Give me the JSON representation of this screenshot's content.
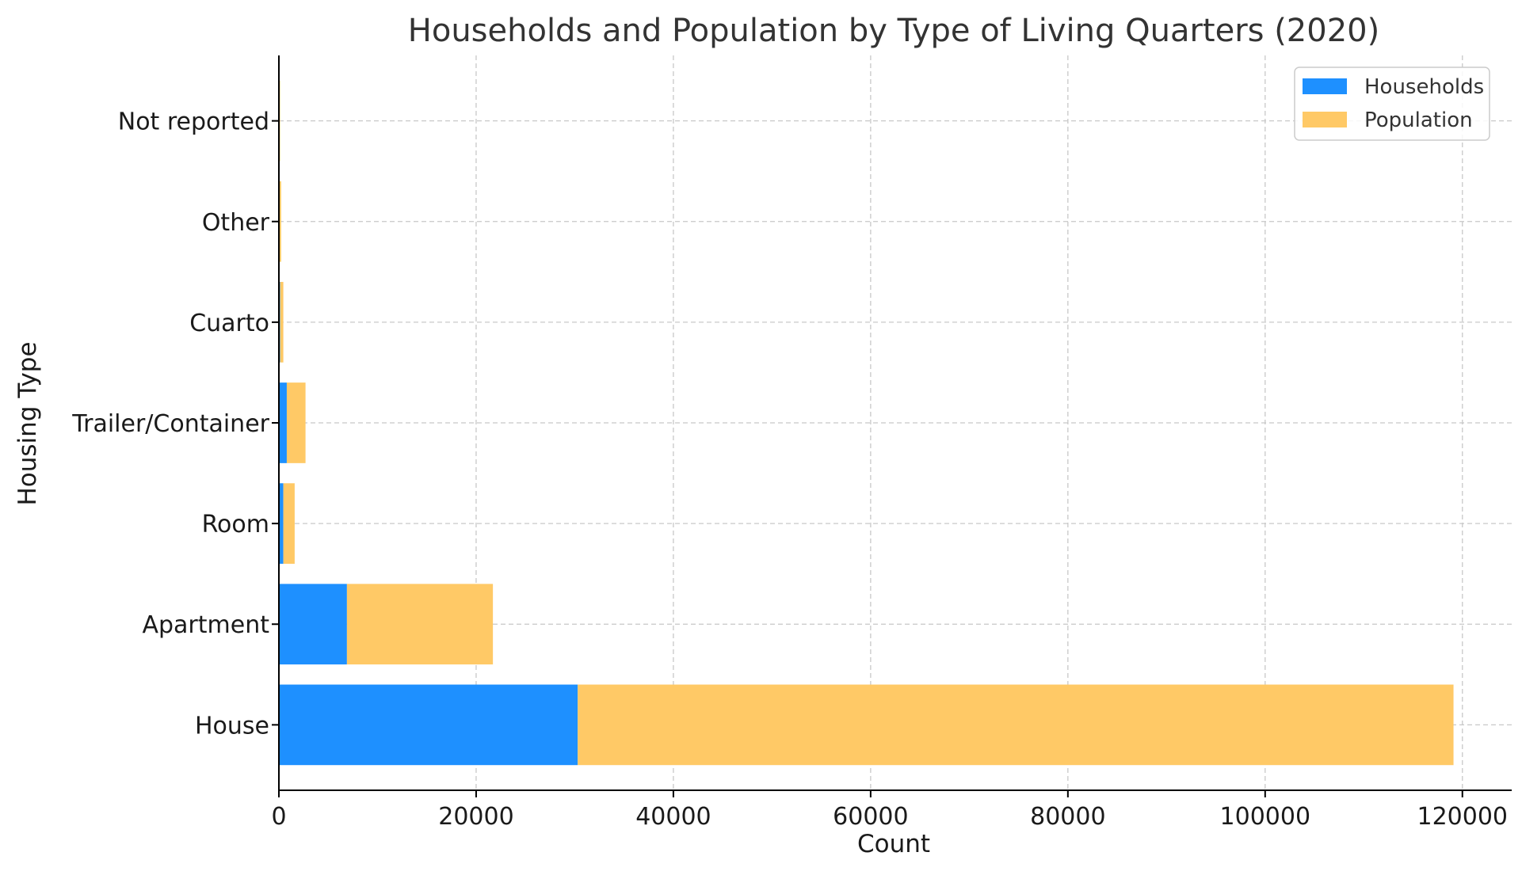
{
  "chart_data": {
    "type": "bar",
    "orientation": "horizontal",
    "stacked": true,
    "title": "Households and Population by Type of Living Quarters (2020)",
    "xlabel": "Count",
    "ylabel": "Housing Type",
    "categories": [
      "House",
      "Apartment",
      "Room",
      "Trailer/Container",
      "Cuarto",
      "Other",
      "Not reported"
    ],
    "series": [
      {
        "name": "Households",
        "color": "#1e90ff",
        "values": [
          30300,
          6900,
          450,
          800,
          120,
          60,
          30
        ]
      },
      {
        "name": "Population",
        "color": "#ffc966",
        "values": [
          88800,
          14800,
          1150,
          1900,
          330,
          170,
          90
        ]
      }
    ],
    "xlim": [
      0,
      125000
    ],
    "xticks": [
      0,
      20000,
      40000,
      60000,
      80000,
      100000,
      120000
    ],
    "xtick_labels": [
      "0",
      "20000",
      "40000",
      "60000",
      "80000",
      "100000",
      "120000"
    ],
    "grid": true,
    "legend": "top-right"
  }
}
